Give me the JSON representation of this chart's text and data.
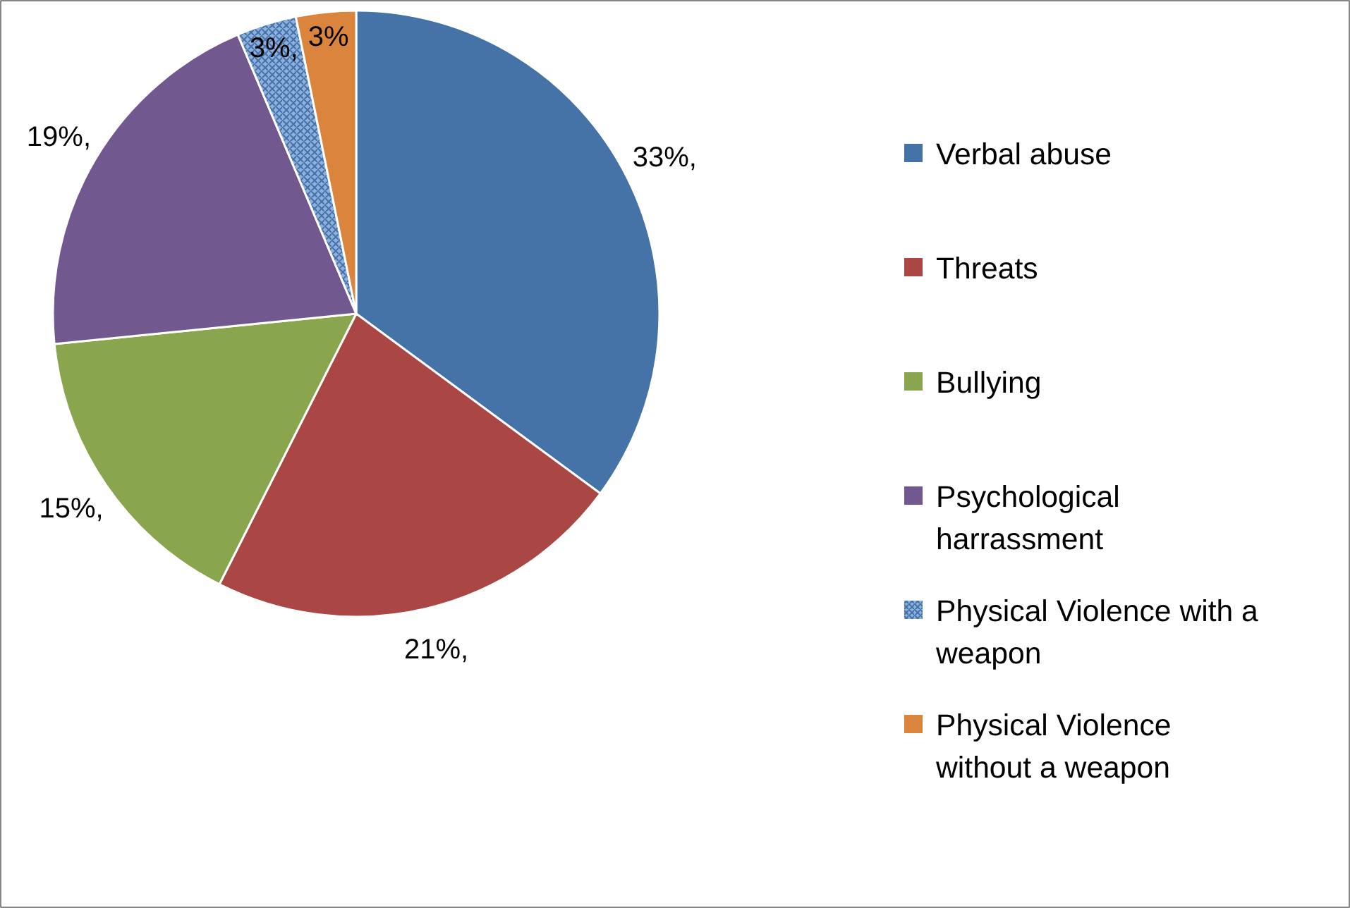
{
  "chart_data": {
    "type": "pie",
    "categories": [
      "Verbal abuse",
      "Threats",
      "Bullying",
      "Psychological harrassment",
      "Physical Violence with a weapon",
      "Physical Violence without a weapon"
    ],
    "values": [
      33,
      21,
      15,
      19,
      3,
      3
    ],
    "value_labels": [
      "33%,",
      "21%,",
      "15%,",
      "19%,",
      "3%,",
      "3%"
    ],
    "colors": [
      "#4572a7",
      "#aa4643",
      "#89a54e",
      "#71588f",
      "#8eb0de",
      "#db843d"
    ],
    "legend": "right"
  }
}
